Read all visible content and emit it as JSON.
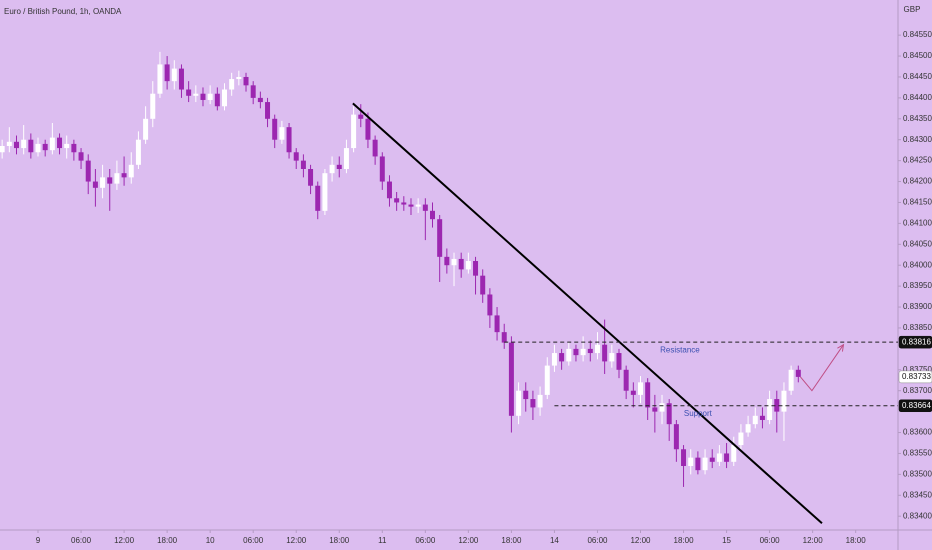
{
  "chart_data": {
    "type": "candlestick",
    "title": "Euro / British Pound, 1h, OANDA",
    "currency": "GBP",
    "background": "#dcbdf0",
    "up_color": "#ffffff",
    "down_color": "#9c27b0",
    "xlim": [
      -5.3,
      119.9
    ],
    "ylim": [
      0.83367,
      0.84634
    ],
    "xticks": [
      {
        "value": 0,
        "label": "9"
      },
      {
        "value": 6,
        "label": "06:00"
      },
      {
        "value": 12,
        "label": "12:00"
      },
      {
        "value": 18,
        "label": "18:00"
      },
      {
        "value": 24,
        "label": "10"
      },
      {
        "value": 30,
        "label": "06:00"
      },
      {
        "value": 36,
        "label": "12:00"
      },
      {
        "value": 42,
        "label": "18:00"
      },
      {
        "value": 48,
        "label": "11"
      },
      {
        "value": 54,
        "label": "06:00"
      },
      {
        "value": 60,
        "label": "12:00"
      },
      {
        "value": 66,
        "label": "18:00"
      },
      {
        "value": 72,
        "label": "14"
      },
      {
        "value": 78,
        "label": "06:00"
      },
      {
        "value": 84,
        "label": "12:00"
      },
      {
        "value": 90,
        "label": "18:00"
      },
      {
        "value": 96,
        "label": "15"
      },
      {
        "value": 102,
        "label": "06:00"
      },
      {
        "value": 108,
        "label": "12:00"
      },
      {
        "value": 114,
        "label": "18:00"
      }
    ],
    "yticks": [
      {
        "value": 0.8455,
        "label": "0.84550"
      },
      {
        "value": 0.845,
        "label": "0.84500"
      },
      {
        "value": 0.8445,
        "label": "0.84450"
      },
      {
        "value": 0.844,
        "label": "0.84400"
      },
      {
        "value": 0.8435,
        "label": "0.84350"
      },
      {
        "value": 0.843,
        "label": "0.84300"
      },
      {
        "value": 0.8425,
        "label": "0.84250"
      },
      {
        "value": 0.842,
        "label": "0.84200"
      },
      {
        "value": 0.8415,
        "label": "0.84150"
      },
      {
        "value": 0.841,
        "label": "0.84100"
      },
      {
        "value": 0.8405,
        "label": "0.84050"
      },
      {
        "value": 0.84,
        "label": "0.84000"
      },
      {
        "value": 0.8395,
        "label": "0.83950"
      },
      {
        "value": 0.839,
        "label": "0.83900"
      },
      {
        "value": 0.8385,
        "label": "0.83850"
      },
      {
        "value": 0.8375,
        "label": "0.83750"
      },
      {
        "value": 0.837,
        "label": "0.83700"
      },
      {
        "value": 0.836,
        "label": "0.83600"
      },
      {
        "value": 0.8355,
        "label": "0.83550"
      },
      {
        "value": 0.835,
        "label": "0.83500"
      },
      {
        "value": 0.8345,
        "label": "0.83450"
      },
      {
        "value": 0.834,
        "label": "0.83400"
      }
    ],
    "x": [
      -5,
      -4,
      -3,
      -2,
      -1,
      0,
      1,
      2,
      3,
      4,
      5,
      6,
      7,
      8,
      9,
      10,
      11,
      12,
      13,
      14,
      15,
      16,
      17,
      18,
      19,
      20,
      21,
      22,
      23,
      24,
      25,
      26,
      27,
      28,
      29,
      30,
      31,
      32,
      33,
      34,
      35,
      36,
      37,
      38,
      39,
      40,
      41,
      42,
      43,
      44,
      45,
      46,
      47,
      48,
      49,
      50,
      51,
      52,
      53,
      54,
      55,
      56,
      57,
      58,
      59,
      60,
      61,
      62,
      63,
      64,
      65,
      66,
      67,
      68,
      69,
      70,
      71,
      72,
      73,
      74,
      75,
      76,
      77,
      78,
      79,
      80,
      81,
      82,
      83,
      84,
      85,
      86,
      87,
      88,
      89,
      90,
      91,
      92,
      93,
      94,
      95,
      96,
      97,
      98,
      99,
      100,
      101,
      102,
      103,
      104,
      105,
      106
    ],
    "ohlc": [
      [
        0.8427,
        0.843,
        0.84255,
        0.84285
      ],
      [
        0.84285,
        0.8433,
        0.8427,
        0.84295
      ],
      [
        0.84295,
        0.8431,
        0.84265,
        0.8428
      ],
      [
        0.8428,
        0.84335,
        0.84265,
        0.843
      ],
      [
        0.843,
        0.84315,
        0.84255,
        0.8427
      ],
      [
        0.8427,
        0.84305,
        0.8426,
        0.8429
      ],
      [
        0.8429,
        0.843,
        0.8426,
        0.84275
      ],
      [
        0.84275,
        0.8434,
        0.84265,
        0.84305
      ],
      [
        0.84305,
        0.84315,
        0.84265,
        0.8428
      ],
      [
        0.8428,
        0.8431,
        0.84255,
        0.8429
      ],
      [
        0.8429,
        0.843,
        0.8425,
        0.8427
      ],
      [
        0.8427,
        0.8428,
        0.8423,
        0.8425
      ],
      [
        0.8425,
        0.84265,
        0.8417,
        0.842
      ],
      [
        0.842,
        0.8423,
        0.8414,
        0.84185
      ],
      [
        0.84185,
        0.8424,
        0.8416,
        0.8421
      ],
      [
        0.8421,
        0.8423,
        0.8413,
        0.84195
      ],
      [
        0.84195,
        0.8425,
        0.8418,
        0.8422
      ],
      [
        0.8422,
        0.8426,
        0.8419,
        0.8421
      ],
      [
        0.8421,
        0.8427,
        0.84195,
        0.8424
      ],
      [
        0.8424,
        0.8432,
        0.8423,
        0.843
      ],
      [
        0.843,
        0.8438,
        0.8429,
        0.8435
      ],
      [
        0.8435,
        0.8444,
        0.8433,
        0.8441
      ],
      [
        0.8441,
        0.8451,
        0.844,
        0.8448
      ],
      [
        0.8448,
        0.845,
        0.8442,
        0.8444
      ],
      [
        0.8444,
        0.8449,
        0.8442,
        0.8447
      ],
      [
        0.8447,
        0.8448,
        0.844,
        0.8442
      ],
      [
        0.8442,
        0.8444,
        0.8439,
        0.84405
      ],
      [
        0.84405,
        0.8443,
        0.8439,
        0.8441
      ],
      [
        0.8441,
        0.84425,
        0.8438,
        0.84395
      ],
      [
        0.84395,
        0.8443,
        0.84385,
        0.8441
      ],
      [
        0.8441,
        0.84425,
        0.8437,
        0.8438
      ],
      [
        0.8438,
        0.84435,
        0.8437,
        0.8442
      ],
      [
        0.8442,
        0.8446,
        0.84405,
        0.84445
      ],
      [
        0.84445,
        0.84465,
        0.8443,
        0.8445
      ],
      [
        0.8445,
        0.8446,
        0.84415,
        0.8443
      ],
      [
        0.8443,
        0.8444,
        0.84385,
        0.844
      ],
      [
        0.844,
        0.84415,
        0.84375,
        0.8439
      ],
      [
        0.8439,
        0.844,
        0.8433,
        0.8435
      ],
      [
        0.8435,
        0.8436,
        0.8428,
        0.843
      ],
      [
        0.843,
        0.84345,
        0.8429,
        0.8433
      ],
      [
        0.8433,
        0.8434,
        0.84255,
        0.8427
      ],
      [
        0.8427,
        0.8428,
        0.8423,
        0.8425
      ],
      [
        0.8425,
        0.84265,
        0.8421,
        0.8423
      ],
      [
        0.8423,
        0.8424,
        0.8417,
        0.8419
      ],
      [
        0.8419,
        0.842,
        0.8411,
        0.8413
      ],
      [
        0.8413,
        0.8423,
        0.8412,
        0.8422
      ],
      [
        0.8422,
        0.8426,
        0.842,
        0.8424
      ],
      [
        0.8424,
        0.8426,
        0.8421,
        0.8423
      ],
      [
        0.8423,
        0.843,
        0.8422,
        0.8428
      ],
      [
        0.8428,
        0.8438,
        0.8427,
        0.8436
      ],
      [
        0.8436,
        0.84385,
        0.8433,
        0.8435
      ],
      [
        0.8435,
        0.84365,
        0.8428,
        0.843
      ],
      [
        0.843,
        0.8431,
        0.8424,
        0.8426
      ],
      [
        0.8426,
        0.8427,
        0.8418,
        0.842
      ],
      [
        0.842,
        0.84215,
        0.8414,
        0.8416
      ],
      [
        0.8416,
        0.84175,
        0.8413,
        0.8415
      ],
      [
        0.8415,
        0.84165,
        0.8413,
        0.84145
      ],
      [
        0.84145,
        0.8416,
        0.8412,
        0.8414
      ],
      [
        0.8414,
        0.8416,
        0.84125,
        0.84145
      ],
      [
        0.84145,
        0.8416,
        0.8406,
        0.8413
      ],
      [
        0.8413,
        0.8415,
        0.8409,
        0.8411
      ],
      [
        0.8411,
        0.8412,
        0.8396,
        0.8402
      ],
      [
        0.8402,
        0.8404,
        0.8398,
        0.84
      ],
      [
        0.84,
        0.8403,
        0.8395,
        0.84015
      ],
      [
        0.84015,
        0.8403,
        0.8397,
        0.8399
      ],
      [
        0.8399,
        0.8403,
        0.8398,
        0.8401
      ],
      [
        0.8401,
        0.8402,
        0.8393,
        0.83975
      ],
      [
        0.83975,
        0.8399,
        0.8391,
        0.8393
      ],
      [
        0.8393,
        0.83945,
        0.8385,
        0.8388
      ],
      [
        0.8388,
        0.839,
        0.8382,
        0.8384
      ],
      [
        0.8384,
        0.8386,
        0.838,
        0.83815
      ],
      [
        0.83815,
        0.8383,
        0.836,
        0.8364
      ],
      [
        0.8364,
        0.8372,
        0.8362,
        0.837
      ],
      [
        0.837,
        0.8372,
        0.8365,
        0.8368
      ],
      [
        0.8368,
        0.837,
        0.8363,
        0.8366
      ],
      [
        0.8366,
        0.8371,
        0.8364,
        0.8369
      ],
      [
        0.8369,
        0.8378,
        0.8368,
        0.8376
      ],
      [
        0.8376,
        0.8381,
        0.83745,
        0.8379
      ],
      [
        0.8379,
        0.838,
        0.8375,
        0.8377
      ],
      [
        0.8377,
        0.83815,
        0.8376,
        0.838
      ],
      [
        0.838,
        0.8381,
        0.8377,
        0.83785
      ],
      [
        0.83785,
        0.8383,
        0.8377,
        0.838
      ],
      [
        0.838,
        0.8382,
        0.8377,
        0.8379
      ],
      [
        0.8379,
        0.8384,
        0.83775,
        0.8381
      ],
      [
        0.8381,
        0.8387,
        0.8374,
        0.8377
      ],
      [
        0.8377,
        0.8381,
        0.83755,
        0.8379
      ],
      [
        0.8379,
        0.838,
        0.8373,
        0.8375
      ],
      [
        0.8375,
        0.8376,
        0.8368,
        0.837
      ],
      [
        0.837,
        0.8372,
        0.8366,
        0.8369
      ],
      [
        0.8369,
        0.83735,
        0.8367,
        0.8372
      ],
      [
        0.8372,
        0.8373,
        0.8363,
        0.8366
      ],
      [
        0.8366,
        0.8369,
        0.836,
        0.8365
      ],
      [
        0.8365,
        0.8369,
        0.8362,
        0.8367
      ],
      [
        0.8367,
        0.8368,
        0.8358,
        0.8362
      ],
      [
        0.8362,
        0.8363,
        0.8353,
        0.8356
      ],
      [
        0.8356,
        0.8357,
        0.8347,
        0.8352
      ],
      [
        0.8352,
        0.8356,
        0.835,
        0.8354
      ],
      [
        0.8354,
        0.83555,
        0.835,
        0.8351
      ],
      [
        0.8351,
        0.8356,
        0.835,
        0.8354
      ],
      [
        0.8354,
        0.8356,
        0.83515,
        0.8353
      ],
      [
        0.8353,
        0.8357,
        0.8352,
        0.8355
      ],
      [
        0.8355,
        0.83575,
        0.83515,
        0.8353
      ],
      [
        0.8353,
        0.8359,
        0.8352,
        0.8357
      ],
      [
        0.8357,
        0.8362,
        0.8356,
        0.836
      ],
      [
        0.836,
        0.8364,
        0.8359,
        0.8362
      ],
      [
        0.8362,
        0.8366,
        0.8361,
        0.8364
      ],
      [
        0.8364,
        0.8366,
        0.8361,
        0.8363
      ],
      [
        0.8363,
        0.837,
        0.8362,
        0.8368
      ],
      [
        0.8368,
        0.837,
        0.836,
        0.8365
      ],
      [
        0.8365,
        0.8372,
        0.8358,
        0.837
      ],
      [
        0.837,
        0.8376,
        0.8369,
        0.8375
      ],
      [
        0.8375,
        0.8376,
        0.8372,
        0.83733
      ]
    ],
    "trendline": {
      "x": [
        43.9,
        109.3
      ],
      "y": [
        0.84387,
        0.83383
      ]
    },
    "levels": [
      {
        "label": "Resistance",
        "value": 0.83816,
        "start": 65,
        "label_x": 89.5
      },
      {
        "label": "Support",
        "value": 0.83664,
        "start": 72,
        "label_x": 92
      }
    ],
    "arrow": {
      "x": [
        106.3,
        107.9,
        112.3
      ],
      "y": [
        0.83733,
        0.837,
        0.8381
      ],
      "color": "#c04f86"
    },
    "price_labels": [
      {
        "value": 0.83816,
        "style": "dark"
      },
      {
        "value": 0.83733,
        "style": "light"
      },
      {
        "value": 0.83664,
        "style": "dark"
      }
    ]
  }
}
